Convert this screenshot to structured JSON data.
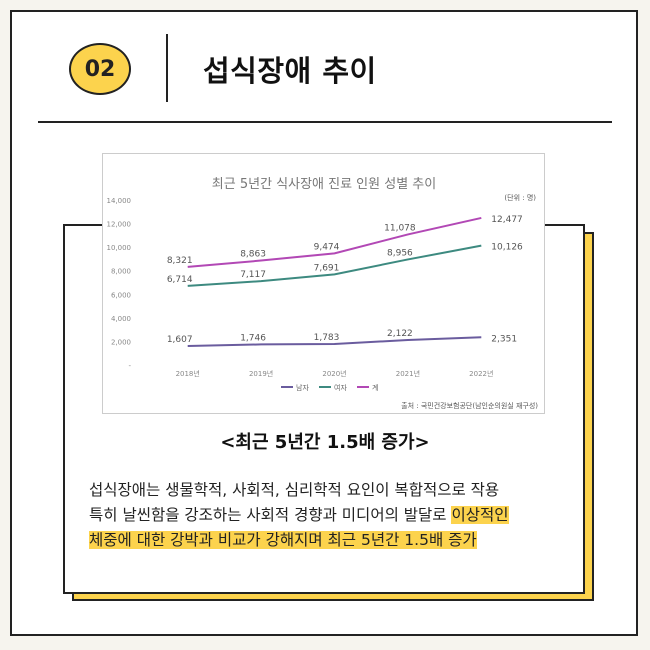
{
  "header": {
    "number": "02",
    "title": "섭식장애 추이"
  },
  "chart_data": {
    "type": "line",
    "title": "최근 5년간 식사장애 진료 인원 성별 추이",
    "unit": "(단위 : 명)",
    "source": "출처 : 국민건강보험공단(남인순의원실 재구성)",
    "categories": [
      "2018년",
      "2019년",
      "2020년",
      "2021년",
      "2022년"
    ],
    "ylim": [
      0,
      14000
    ],
    "yticks": [
      "-",
      "2,000",
      "4,000",
      "6,000",
      "8,000",
      "10,000",
      "12,000",
      "14,000"
    ],
    "grid": false,
    "legend_position": "bottom",
    "series": [
      {
        "name": "남자",
        "color": "#6a5c9e",
        "values": [
          1607,
          1746,
          1783,
          2122,
          2351
        ],
        "labels": [
          "1,607",
          "1,746",
          "1,783",
          "2,122",
          "2,351"
        ]
      },
      {
        "name": "여자",
        "color": "#3d8a80",
        "values": [
          6714,
          7117,
          7691,
          8956,
          10126
        ],
        "labels": [
          "6,714",
          "7,117",
          "7,691",
          "8,956",
          "10,126"
        ]
      },
      {
        "name": "계",
        "color": "#b248b5",
        "values": [
          8321,
          8863,
          9474,
          11078,
          12477
        ],
        "labels": [
          "8,321",
          "8,863",
          "9,474",
          "11,078",
          "12,477"
        ]
      }
    ]
  },
  "subheading": "<최근 5년간 1.5배 증가>",
  "body": {
    "line1": "섭식장애는 생물학적, 사회적, 심리학적 요인이 복합적으로 작용",
    "line2_plain": "특히 날씬함을 강조하는 사회적 경향과 미디어의 발달로 ",
    "line2_highlight": "이상적인",
    "line3_highlight": "체중에 대한 강박과 비교가 강해지며 최근 5년간 1.5배 증가"
  }
}
